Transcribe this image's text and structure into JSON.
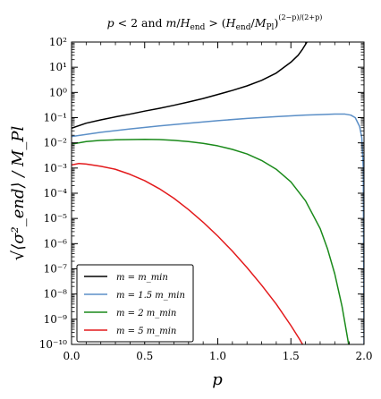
{
  "chart_data": {
    "type": "line",
    "title": "p < 2 and m/H_end > (H_end/M_Pl)^((2-p)/(2+p))",
    "xlabel": "p",
    "ylabel": "√⟨σ²_end⟩ / M_Pl",
    "xlim": [
      0.0,
      2.0
    ],
    "ylim_log10": [
      -10,
      2
    ],
    "yscale": "log",
    "x_ticks": [
      {
        "value": 0.0,
        "label": "0.0"
      },
      {
        "value": 0.5,
        "label": "0.5"
      },
      {
        "value": 1.0,
        "label": "1.0"
      },
      {
        "value": 1.5,
        "label": "1.5"
      },
      {
        "value": 2.0,
        "label": "2.0"
      }
    ],
    "y_ticks": [
      {
        "exp": 2,
        "label": "10²"
      },
      {
        "exp": 1,
        "label": "10¹"
      },
      {
        "exp": 0,
        "label": "10⁰"
      },
      {
        "exp": -1,
        "label": "10⁻¹"
      },
      {
        "exp": -2,
        "label": "10⁻²"
      },
      {
        "exp": -3,
        "label": "10⁻³"
      },
      {
        "exp": -4,
        "label": "10⁻⁴"
      },
      {
        "exp": -5,
        "label": "10⁻⁵"
      },
      {
        "exp": -6,
        "label": "10⁻⁶"
      },
      {
        "exp": -7,
        "label": "10⁻⁷"
      },
      {
        "exp": -8,
        "label": "10⁻⁸"
      },
      {
        "exp": -9,
        "label": "10⁻⁹"
      },
      {
        "exp": -10,
        "label": "10⁻¹⁰"
      }
    ],
    "grid": false,
    "legend_position": "bottom-left",
    "series": [
      {
        "name": "m = m_min",
        "color": "#000000",
        "points": [
          [
            0.0,
            -1.42
          ],
          [
            0.1,
            -1.22
          ],
          [
            0.2,
            -1.09
          ],
          [
            0.3,
            -0.97
          ],
          [
            0.4,
            -0.86
          ],
          [
            0.5,
            -0.74
          ],
          [
            0.6,
            -0.63
          ],
          [
            0.7,
            -0.51
          ],
          [
            0.8,
            -0.38
          ],
          [
            0.9,
            -0.24
          ],
          [
            1.0,
            -0.08
          ],
          [
            1.1,
            0.08
          ],
          [
            1.2,
            0.26
          ],
          [
            1.3,
            0.48
          ],
          [
            1.4,
            0.77
          ],
          [
            1.5,
            1.2
          ],
          [
            1.55,
            1.48
          ],
          [
            1.58,
            1.72
          ],
          [
            1.61,
            2.0
          ]
        ]
      },
      {
        "name": "m = 1.5 m_min",
        "color": "#5b8fc7",
        "points": [
          [
            0.0,
            -1.75
          ],
          [
            0.2,
            -1.58
          ],
          [
            0.4,
            -1.45
          ],
          [
            0.6,
            -1.33
          ],
          [
            0.8,
            -1.22
          ],
          [
            1.0,
            -1.12
          ],
          [
            1.2,
            -1.03
          ],
          [
            1.4,
            -0.96
          ],
          [
            1.6,
            -0.9
          ],
          [
            1.7,
            -0.88
          ],
          [
            1.8,
            -0.86
          ],
          [
            1.87,
            -0.86
          ],
          [
            1.91,
            -0.9
          ],
          [
            1.94,
            -1.0
          ],
          [
            1.97,
            -1.35
          ],
          [
            1.985,
            -1.8
          ],
          [
            1.995,
            -3.0
          ],
          [
            2.0,
            -10.0
          ]
        ]
      },
      {
        "name": "m = 2 m_min",
        "color": "#1a8a1a",
        "points": [
          [
            0.0,
            -2.05
          ],
          [
            0.1,
            -1.95
          ],
          [
            0.2,
            -1.9
          ],
          [
            0.3,
            -1.88
          ],
          [
            0.4,
            -1.87
          ],
          [
            0.5,
            -1.86
          ],
          [
            0.6,
            -1.87
          ],
          [
            0.7,
            -1.9
          ],
          [
            0.8,
            -1.95
          ],
          [
            0.9,
            -2.02
          ],
          [
            1.0,
            -2.12
          ],
          [
            1.1,
            -2.26
          ],
          [
            1.2,
            -2.44
          ],
          [
            1.3,
            -2.7
          ],
          [
            1.4,
            -3.05
          ],
          [
            1.5,
            -3.55
          ],
          [
            1.6,
            -4.3
          ],
          [
            1.7,
            -5.4
          ],
          [
            1.75,
            -6.2
          ],
          [
            1.8,
            -7.2
          ],
          [
            1.85,
            -8.5
          ],
          [
            1.88,
            -9.5
          ],
          [
            1.895,
            -10.0
          ]
        ]
      },
      {
        "name": "m = 5 m_min",
        "color": "#e31a1c",
        "points": [
          [
            0.0,
            -2.88
          ],
          [
            0.05,
            -2.82
          ],
          [
            0.1,
            -2.84
          ],
          [
            0.2,
            -2.93
          ],
          [
            0.3,
            -3.05
          ],
          [
            0.4,
            -3.25
          ],
          [
            0.5,
            -3.5
          ],
          [
            0.6,
            -3.82
          ],
          [
            0.7,
            -4.2
          ],
          [
            0.8,
            -4.65
          ],
          [
            0.9,
            -5.15
          ],
          [
            1.0,
            -5.7
          ],
          [
            1.1,
            -6.3
          ],
          [
            1.2,
            -6.95
          ],
          [
            1.3,
            -7.65
          ],
          [
            1.4,
            -8.4
          ],
          [
            1.5,
            -9.25
          ],
          [
            1.56,
            -9.8
          ],
          [
            1.58,
            -10.0
          ]
        ]
      }
    ]
  }
}
